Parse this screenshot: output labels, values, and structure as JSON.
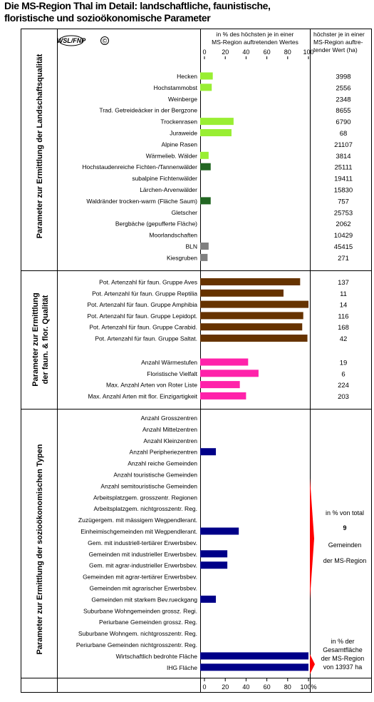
{
  "title_line1": "Die MS-Region Thal im Detail: landschaftliche, faunistische,",
  "title_line2": "floristische und sozioökonomische Parameter",
  "logo": {
    "text": "WSL/FNP",
    "copyright": "©"
  },
  "header": {
    "pct_line1": "in % des höchsten je in einer",
    "pct_line2": "MS-Region auftretenden Wertes",
    "max_line1": "höchster je in einer",
    "max_line2": "MS-Region auftre-",
    "max_line3": "tender Wert (ha)"
  },
  "section_titles": {
    "s1": "Parameter zur Ermittlung der Landschaftsqualität",
    "s2a": "Parameter zur Ermittlung",
    "s2b": "der faun. & flor. Qualität",
    "s3": "Parameter zur Ermittlung der sozioökonomischen Typen"
  },
  "note_total": {
    "line1": "in % von total",
    "number": "9",
    "line2": "Gemeinden",
    "line3": "der MS-Region"
  },
  "note_area": {
    "line1": "in % der",
    "line2": "Gesamtfläche",
    "line3": "der MS-Region",
    "line4": "von 13937 ha"
  },
  "colors": {
    "light_green": "#99ee33",
    "dark_green": "#226622",
    "gray": "#808080",
    "brown": "#663300",
    "pink": "#ff22aa",
    "navy": "#000088",
    "red": "#ff0000"
  },
  "chart_data": {
    "type": "bar",
    "orientation": "horizontal",
    "xlim": [
      0,
      100
    ],
    "x_ticks": [
      "0",
      "20",
      "40",
      "60",
      "80",
      "100"
    ],
    "x_ticks_bottom": [
      "0",
      "20",
      "40",
      "60",
      "80",
      "100%"
    ],
    "grid": false,
    "section1": {
      "categories": [
        "Hecken",
        "Hochstammobst",
        "Weinberge",
        "Trad. Getreideäcker in der Bergzone",
        "Trockenrasen",
        "Juraweide",
        "Alpine Rasen",
        "Wärmelieb. Wälder",
        "Hochstaudenreiche Fichten-/Tannenwälder",
        "subalpine Fichtenwälder",
        "Lärchen-Arvenwälder",
        "Waldränder trocken-warm (Fläche Saum)",
        "Gletscher",
        "Bergbäche (gepufferte Fläche)",
        "Moorlandschaften",
        "BLN",
        "Kiesgruben"
      ],
      "values": [
        8,
        7,
        0,
        0,
        28,
        26,
        0,
        4,
        6,
        0,
        0,
        6,
        0,
        0,
        0,
        4,
        3
      ],
      "colors": [
        "#99ee33",
        "#99ee33",
        "#99ee33",
        "#99ee33",
        "#99ee33",
        "#99ee33",
        "#99ee33",
        "#99ee33",
        "#226622",
        "#226622",
        "#226622",
        "#226622",
        "#226622",
        "#226622",
        "#226622",
        "#808080",
        "#808080"
      ],
      "max_values": [
        "3998",
        "2556",
        "2348",
        "8655",
        "6790",
        "68",
        "21107",
        "3814",
        "25111",
        "19411",
        "15830",
        "757",
        "25753",
        "2062",
        "10429",
        "45415",
        "271"
      ]
    },
    "section2": {
      "categories": [
        "Pot. Artenzahl für faun. Gruppe Aves",
        "Pot. Artenzahl für faun. Gruppe Reptilia",
        "Pot. Artenzahl für faun. Gruppe Amphibia",
        "Pot. Artenzahl für faun. Gruppe Lepidopt.",
        "Pot. Artenzahl für faun. Gruppe Carabid.",
        "Pot. Artenzahl für faun. Gruppe Saltat."
      ],
      "values": [
        92,
        76,
        100,
        95,
        94,
        99
      ],
      "colors": [
        "#663300",
        "#663300",
        "#663300",
        "#663300",
        "#663300",
        "#663300"
      ],
      "max_values": [
        "137",
        "11",
        "14",
        "116",
        "168",
        "42"
      ]
    },
    "section2b": {
      "categories": [
        "Anzahl Wärmestufen",
        "Floristische Vielfalt",
        "Max. Anzahl Arten von Roter Liste",
        "Max. Anzahl Arten mit flor. Einzigartigkeit"
      ],
      "values": [
        42,
        52,
        34,
        40
      ],
      "colors": [
        "#ff22aa",
        "#ff22aa",
        "#ff22aa",
        "#ff22aa"
      ],
      "max_values": [
        "19",
        "6",
        "224",
        "203"
      ]
    },
    "section3": {
      "categories": [
        "Anzahl Grosszentren",
        "Anzahl Mittelzentren",
        "Anzahl Kleinzentren",
        "Anzahl Peripheriezentren",
        "Anzahl reiche Gemeinden",
        "Anzahl touristische Gemeinden",
        "Anzahl semitouristische Gemeinden",
        "Arbeitsplatzgem. grosszentr. Regionen",
        "Arbeitsplatzgem. nichtgrosszentr. Reg.",
        "Zuzügergem. mit mässigem Wegpendlerant.",
        "Einheimischgemeinden mit Wegpendlerant.",
        "Gem. mit industriell-tertiärer Erwerbsbev.",
        "Gemeinden mit industrieller Erwerbsbev.",
        "Gem. mit agrar-industrieller Erwerbsbev.",
        "Gemeinden mit agrar-tertiärer Erwerbsbev.",
        "Gemeinden mit agrarischer Erwerbsbev.",
        "Gemeinden mit starkem Bev.rueckgang",
        "Suburbane Wohngemeinden grossz. Regi.",
        "Periurbane Gemeinden grossz. Reg.",
        "Suburbane Wohngem. nichtgrosszentr. Reg.",
        "Periurbane Gemeinden nichtgrosszentr. Reg.",
        "Wirtschaftlich bedrohte Fläche",
        "IHG Fläche"
      ],
      "values": [
        0,
        0,
        0,
        11,
        0,
        0,
        0,
        0,
        0,
        0,
        33,
        0,
        22,
        22,
        0,
        0,
        11,
        0,
        0,
        0,
        0,
        100,
        100
      ],
      "colors": [
        "#000088",
        "#000088",
        "#000088",
        "#000088",
        "#000088",
        "#000088",
        "#000088",
        "#000088",
        "#000088",
        "#000088",
        "#000088",
        "#000088",
        "#000088",
        "#000088",
        "#000088",
        "#000088",
        "#000088",
        "#000088",
        "#000088",
        "#000088",
        "#000088",
        "#000088",
        "#000088"
      ]
    }
  }
}
